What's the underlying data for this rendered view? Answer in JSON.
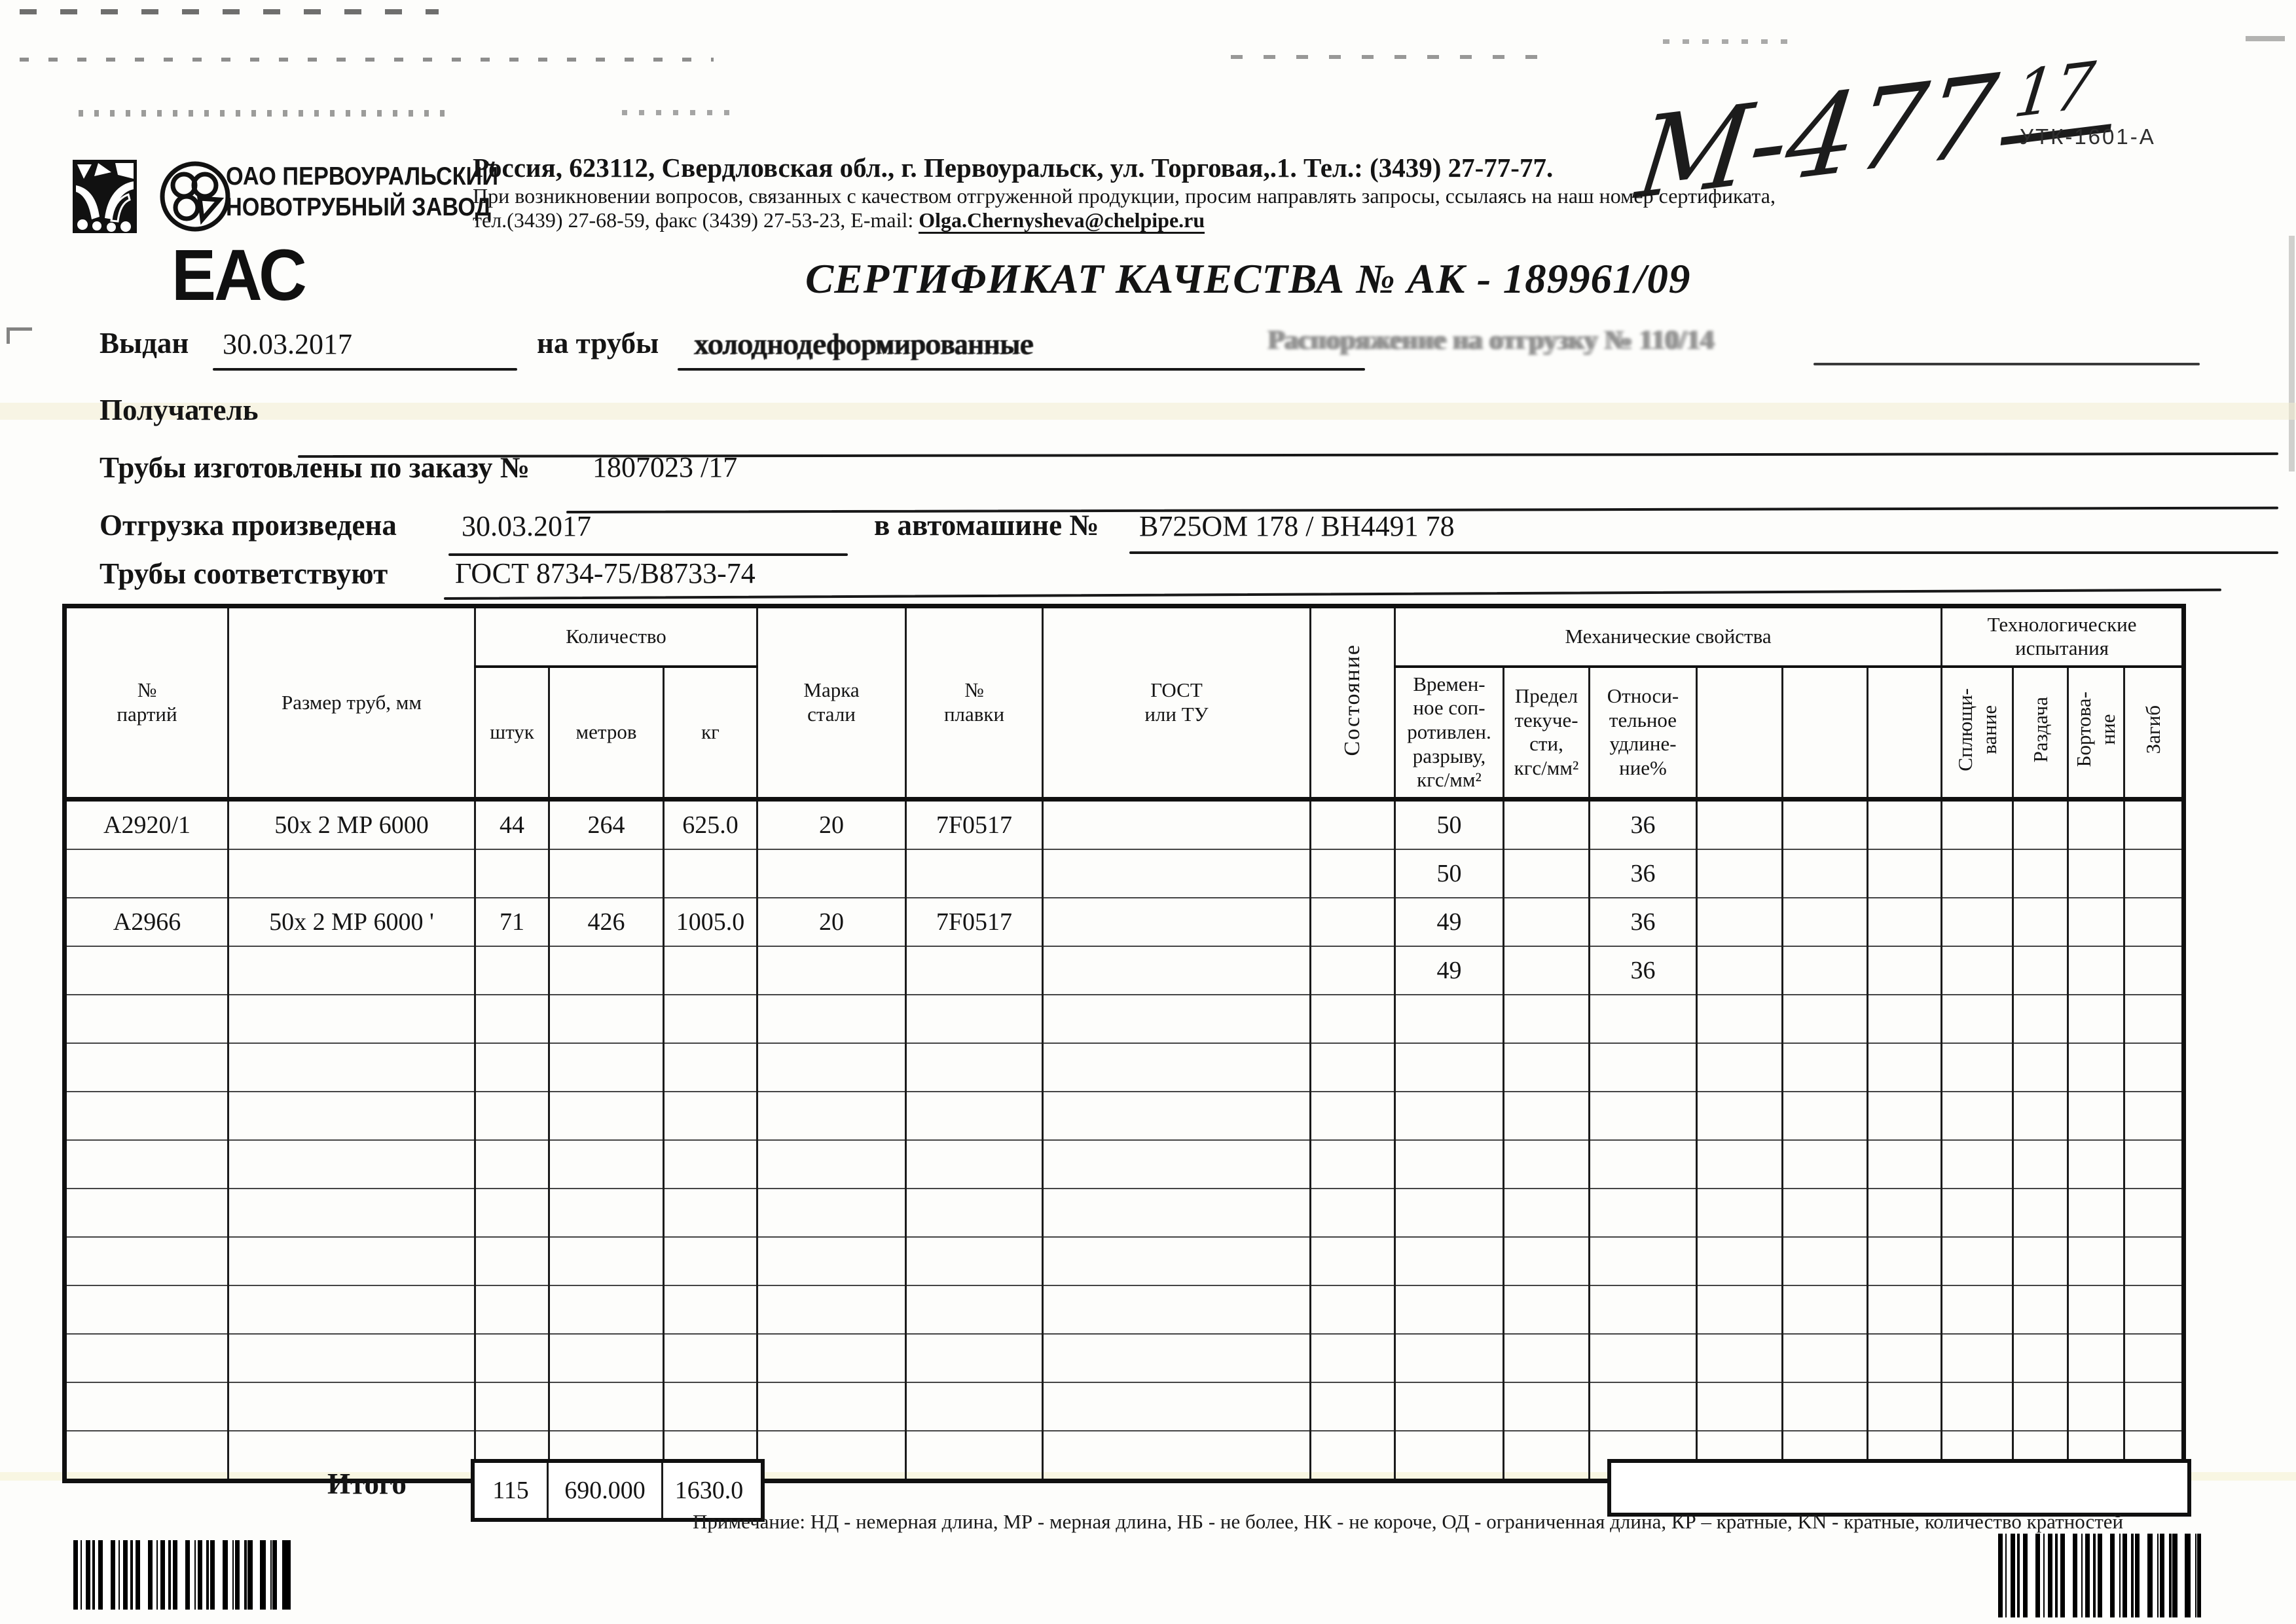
{
  "scan_marks": {
    "handwritten_number": "М-477",
    "handwritten_sup": "17",
    "form_code": "УТК-1601-А"
  },
  "header": {
    "company": "ОАО ПЕРВОУРАЛЬСКИЙ\nНОВОТРУБНЫЙ ЗАВОД",
    "address": "Россия, 623112, Свердловская обл., г. Первоуральск, ул. Торговая,.1. Тел.: (3439) 27-77-77.",
    "quality_note": "При возникновении вопросов, связанных с качеством отгруженной продукции, просим направлять запросы, ссылаясь на наш номер сертификата,",
    "contacts_prefix": "тел.(3439) 27-68-59, факс (3439) 27-53-23,  E-mail: ",
    "email": "Olga.Chernysheva@chelpipe.ru",
    "eac_mark": "ЕАС",
    "title": "СЕРТИФИКАТ КАЧЕСТВА   №  АК -  189961/09"
  },
  "form": {
    "issued_label": "Выдан",
    "issued_value": "30.03.2017",
    "pipes_label": "на трубы",
    "pipes_value": "холоднодеформированные",
    "ghost_text": "Распоряжение на отгрузку №   110/14",
    "receiver_label": "Получатель",
    "order_label": "Трубы изготовлены по заказу №",
    "order_value": "1807023   /17",
    "shipment_label": "Отгрузка произведена",
    "shipment_date": "30.03.2017",
    "truck_label": "в автомашине №",
    "truck_value": "В725ОМ 178 / ВН4491 78",
    "standard_label": "Трубы соответствуют",
    "standard_value": "ГОСТ 8734-75/В8733-74"
  },
  "table": {
    "headers": {
      "batch": "№\nпартий",
      "size": "Размер труб, мм",
      "qty": "Количество",
      "pcs": "штук",
      "meters": "метров",
      "kg": "кг",
      "steel": "Марка\nстали",
      "heat": "№\nплавки",
      "gost": "ГОСТ\nили ТУ",
      "state": "Состояние",
      "mech": "Механические свойства",
      "tensile": "Времен-\nное соп-\nротивлен.\nразрыву,\nкгс/мм²",
      "yield": "Предел\nтекуче-\nсти,\nкгс/мм²",
      "elongation": "Относи-\nтельное\nудлине-\nние%",
      "tech": "Технологические\nиспытания",
      "flattening": "Сплющи-\nвание",
      "expanding": "Раздача",
      "flanging": "Бортова-\nние",
      "bending": "Загиб"
    },
    "rows": [
      [
        "А2920/1",
        "50x 2 МР 6000",
        "44",
        "264",
        "625.0",
        "20",
        "7F0517",
        "",
        "",
        "50",
        "",
        "36",
        "",
        "",
        "",
        "",
        "",
        "",
        ""
      ],
      [
        "",
        "",
        "",
        "",
        "",
        "",
        "",
        "",
        "",
        "50",
        "",
        "36",
        "",
        "",
        "",
        "",
        "",
        "",
        ""
      ],
      [
        "А2966",
        "50x 2 МР 6000 '",
        "71",
        "426",
        "1005.0",
        "20",
        "7F0517",
        "",
        "",
        "49",
        "",
        "36",
        "",
        "",
        "",
        "",
        "",
        "",
        ""
      ],
      [
        "",
        "",
        "",
        "",
        "",
        "",
        "",
        "",
        "",
        "49",
        "",
        "36",
        "",
        "",
        "",
        "",
        "",
        "",
        ""
      ],
      [
        "",
        "",
        "",
        "",
        "",
        "",
        "",
        "",
        "",
        "",
        "",
        "",
        "",
        "",
        "",
        "",
        "",
        "",
        ""
      ],
      [
        "",
        "",
        "",
        "",
        "",
        "",
        "",
        "",
        "",
        "",
        "",
        "",
        "",
        "",
        "",
        "",
        "",
        "",
        ""
      ],
      [
        "",
        "",
        "",
        "",
        "",
        "",
        "",
        "",
        "",
        "",
        "",
        "",
        "",
        "",
        "",
        "",
        "",
        "",
        ""
      ],
      [
        "",
        "",
        "",
        "",
        "",
        "",
        "",
        "",
        "",
        "",
        "",
        "",
        "",
        "",
        "",
        "",
        "",
        "",
        ""
      ],
      [
        "",
        "",
        "",
        "",
        "",
        "",
        "",
        "",
        "",
        "",
        "",
        "",
        "",
        "",
        "",
        "",
        "",
        "",
        ""
      ],
      [
        "",
        "",
        "",
        "",
        "",
        "",
        "",
        "",
        "",
        "",
        "",
        "",
        "",
        "",
        "",
        "",
        "",
        "",
        ""
      ],
      [
        "",
        "",
        "",
        "",
        "",
        "",
        "",
        "",
        "",
        "",
        "",
        "",
        "",
        "",
        "",
        "",
        "",
        "",
        ""
      ],
      [
        "",
        "",
        "",
        "",
        "",
        "",
        "",
        "",
        "",
        "",
        "",
        "",
        "",
        "",
        "",
        "",
        "",
        "",
        ""
      ],
      [
        "",
        "",
        "",
        "",
        "",
        "",
        "",
        "",
        "",
        "",
        "",
        "",
        "",
        "",
        "",
        "",
        "",
        "",
        ""
      ],
      [
        "",
        "",
        "",
        "",
        "",
        "",
        "",
        "",
        "",
        "",
        "",
        "",
        "",
        "",
        "",
        "",
        "",
        "",
        ""
      ]
    ],
    "total_label": "Итого",
    "total_pcs": "115",
    "total_meters": "690.000",
    "total_kg": "1630.0"
  },
  "footer": {
    "note": "Примечание: НД - немерная длина, МР - мерная длина, НБ - не более, НК - не короче, ОД - ограниченная длина, КР – кратные, KN - кратные, количество кратностей"
  }
}
